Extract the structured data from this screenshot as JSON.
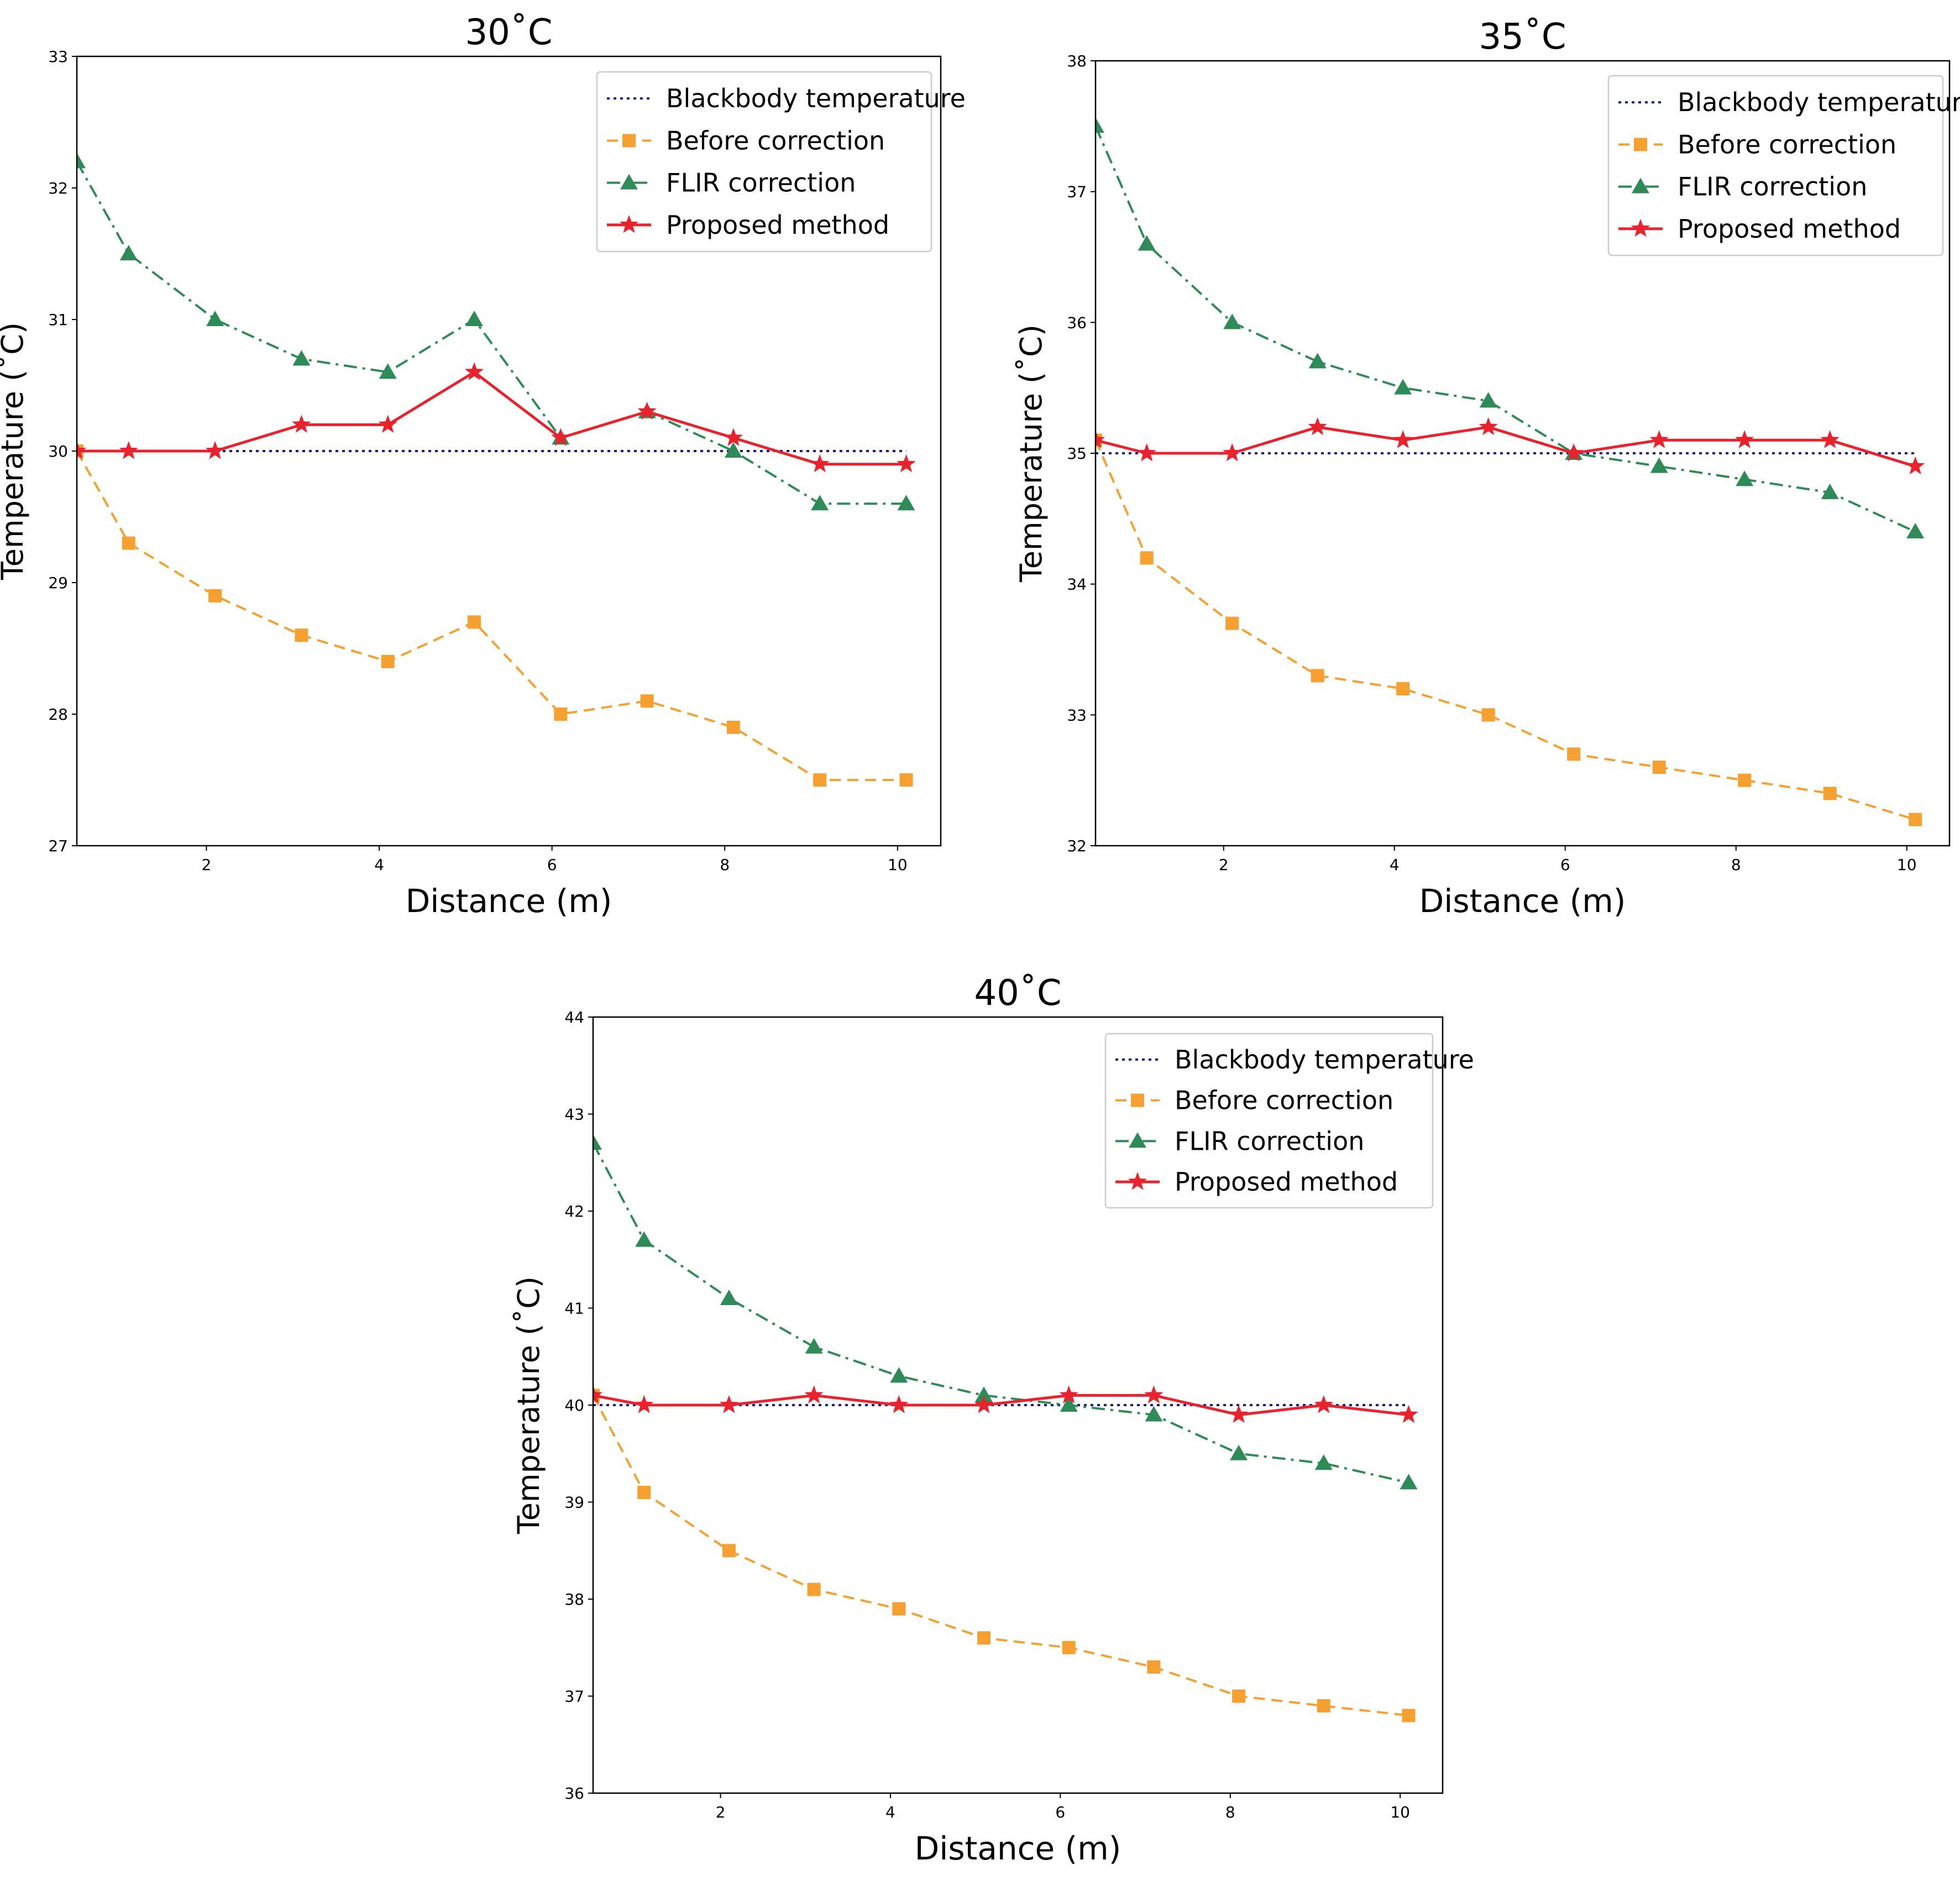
{
  "colors": {
    "blackbody": "#1a1a8c",
    "before": "#f5a030",
    "flir": "#2e8b57",
    "proposed": "#e8232d",
    "axis": "#000000",
    "legend_border": "#cccccc"
  },
  "chart_data": [
    {
      "type": "line",
      "title": "30˚C",
      "xlabel": "Distance (m)",
      "ylabel": "Temperature (˚C)",
      "xlim": [
        0.5,
        10.5
      ],
      "ylim": [
        27,
        33
      ],
      "xticks": [
        2,
        4,
        6,
        8,
        10
      ],
      "yticks": [
        27,
        28,
        29,
        30,
        31,
        32,
        33
      ],
      "x": [
        0.5,
        1.1,
        2.1,
        3.1,
        4.1,
        5.1,
        6.1,
        7.1,
        8.1,
        9.1,
        10.1
      ],
      "legend_position": "top-right",
      "series": [
        {
          "name": "Blackbody temperature",
          "style": "dotted",
          "marker": "none",
          "color_key": "blackbody",
          "values": [
            30,
            30,
            30,
            30,
            30,
            30,
            30,
            30,
            30,
            30,
            30
          ]
        },
        {
          "name": "Before correction",
          "style": "dashed",
          "marker": "square",
          "color_key": "before",
          "values": [
            30.0,
            29.3,
            28.9,
            28.6,
            28.4,
            28.7,
            28.0,
            28.1,
            27.9,
            27.5,
            27.5
          ]
        },
        {
          "name": "FLIR correction",
          "style": "dashdot",
          "marker": "triangle",
          "color_key": "flir",
          "values": [
            32.2,
            31.5,
            31.0,
            30.7,
            30.6,
            31.0,
            30.1,
            30.3,
            30.0,
            29.6,
            29.6
          ]
        },
        {
          "name": "Proposed method",
          "style": "solid",
          "marker": "star",
          "color_key": "proposed",
          "values": [
            30.0,
            30.0,
            30.0,
            30.2,
            30.2,
            30.6,
            30.1,
            30.3,
            30.1,
            29.9,
            29.9
          ]
        }
      ]
    },
    {
      "type": "line",
      "title": "35˚C",
      "xlabel": "Distance (m)",
      "ylabel": "Temperature (˚C)",
      "xlim": [
        0.5,
        10.5
      ],
      "ylim": [
        32,
        38
      ],
      "xticks": [
        2,
        4,
        6,
        8,
        10
      ],
      "yticks": [
        32,
        33,
        34,
        35,
        36,
        37,
        38
      ],
      "x": [
        0.5,
        1.1,
        2.1,
        3.1,
        4.1,
        5.1,
        6.1,
        7.1,
        8.1,
        9.1,
        10.1
      ],
      "legend_position": "top-right",
      "series": [
        {
          "name": "Blackbody temperature",
          "style": "dotted",
          "marker": "none",
          "color_key": "blackbody",
          "values": [
            35,
            35,
            35,
            35,
            35,
            35,
            35,
            35,
            35,
            35,
            35
          ]
        },
        {
          "name": "Before correction",
          "style": "dashed",
          "marker": "square",
          "color_key": "before",
          "values": [
            35.1,
            34.2,
            33.7,
            33.3,
            33.2,
            33.0,
            32.7,
            32.6,
            32.5,
            32.4,
            32.2
          ]
        },
        {
          "name": "FLIR correction",
          "style": "dashdot",
          "marker": "triangle",
          "color_key": "flir",
          "values": [
            37.5,
            36.6,
            36.0,
            35.7,
            35.5,
            35.4,
            35.0,
            34.9,
            34.8,
            34.7,
            34.4
          ]
        },
        {
          "name": "Proposed method",
          "style": "solid",
          "marker": "star",
          "color_key": "proposed",
          "values": [
            35.1,
            35.0,
            35.0,
            35.2,
            35.1,
            35.2,
            35.0,
            35.1,
            35.1,
            35.1,
            34.9
          ]
        }
      ]
    },
    {
      "type": "line",
      "title": "40˚C",
      "xlabel": "Distance (m)",
      "ylabel": "Temperature (˚C)",
      "xlim": [
        0.5,
        10.5
      ],
      "ylim": [
        36,
        44
      ],
      "xticks": [
        2,
        4,
        6,
        8,
        10
      ],
      "yticks": [
        36,
        37,
        38,
        39,
        40,
        41,
        42,
        43,
        44
      ],
      "x": [
        0.5,
        1.1,
        2.1,
        3.1,
        4.1,
        5.1,
        6.1,
        7.1,
        8.1,
        9.1,
        10.1
      ],
      "legend_position": "top-right",
      "series": [
        {
          "name": "Blackbody temperature",
          "style": "dotted",
          "marker": "none",
          "color_key": "blackbody",
          "values": [
            40,
            40,
            40,
            40,
            40,
            40,
            40,
            40,
            40,
            40,
            40
          ]
        },
        {
          "name": "Before correction",
          "style": "dashed",
          "marker": "square",
          "color_key": "before",
          "values": [
            40.1,
            39.1,
            38.5,
            38.1,
            37.9,
            37.6,
            37.5,
            37.3,
            37.0,
            36.9,
            36.8
          ]
        },
        {
          "name": "FLIR correction",
          "style": "dashdot",
          "marker": "triangle",
          "color_key": "flir",
          "values": [
            42.7,
            41.7,
            41.1,
            40.6,
            40.3,
            40.1,
            40.0,
            39.9,
            39.5,
            39.4,
            39.2
          ]
        },
        {
          "name": "Proposed method",
          "style": "solid",
          "marker": "star",
          "color_key": "proposed",
          "values": [
            40.1,
            40.0,
            40.0,
            40.1,
            40.0,
            40.0,
            40.1,
            40.1,
            39.9,
            40.0,
            39.9
          ]
        }
      ]
    }
  ]
}
